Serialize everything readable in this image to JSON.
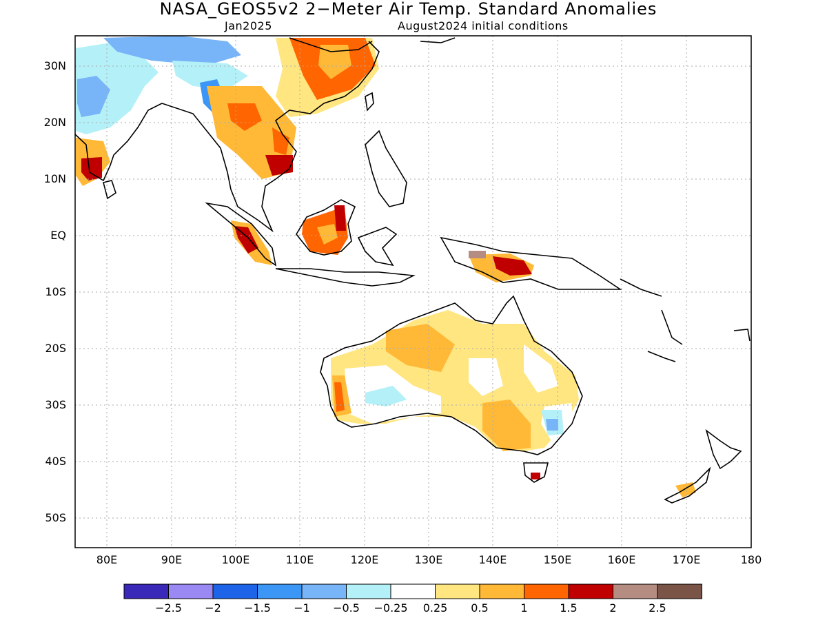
{
  "title": "NASA_GEOS5v2 2−Meter Air Temp. Standard Anomalies",
  "subtitle_left": "Jan2025",
  "subtitle_right": "August2024 initial conditions",
  "map": {
    "lon_range": [
      75,
      180
    ],
    "lat_range": [
      -55,
      35
    ],
    "lat_ticks": [
      "30N",
      "20N",
      "10N",
      "EQ",
      "10S",
      "20S",
      "30S",
      "40S",
      "50S"
    ],
    "lon_ticks": [
      "80E",
      "90E",
      "100E",
      "110E",
      "120E",
      "130E",
      "140E",
      "150E",
      "160E",
      "170E",
      "180"
    ],
    "grid": "dotted gray"
  },
  "colorbar": {
    "colors": [
      "#3a28b8",
      "#9a88f3",
      "#1e64e8",
      "#3c96f5",
      "#78b4f8",
      "#b4f0f8",
      "#ffffff",
      "#ffe680",
      "#ffb937",
      "#ff6500",
      "#c00000",
      "#b48c82",
      "#7a5446"
    ],
    "labels": [
      "−2.5",
      "−2",
      "−1.5",
      "−1",
      "−0.5",
      "−0.25",
      "0.25",
      "0.5",
      "1",
      "1.5",
      "2",
      "2.5"
    ]
  }
}
